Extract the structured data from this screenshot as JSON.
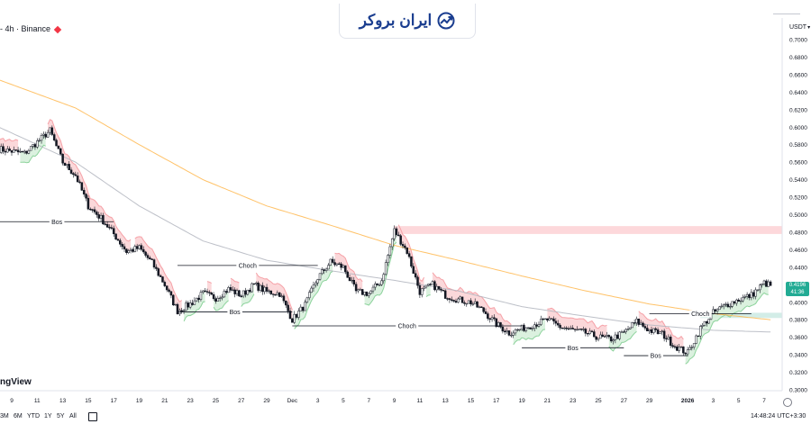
{
  "header": {
    "symbol_label": "- 4h · Binance",
    "logo_text": "ایران بروکر"
  },
  "currency": {
    "label": "USDT",
    "chevron": "▾"
  },
  "last_price": {
    "value": "0.4196",
    "countdown": "41:36"
  },
  "brand": {
    "text": "ngView"
  },
  "bottom_bar": {
    "ranges": [
      "3M",
      "6M",
      "YTD",
      "1Y",
      "5Y",
      "All"
    ],
    "clock": "14:48:24 UTC+3:30"
  },
  "colors": {
    "bull": "#089981",
    "bear": "#f23645",
    "ma_orange": "#ffb74d",
    "ma_blue": "#b2b5be",
    "red_cloud": "#fbd4d6",
    "green_cloud": "#d7efdb",
    "red_line": "#f6a1a7",
    "green_line": "#8dd39c",
    "zone_red": "#fdd8db",
    "zone_green": "#d3ede7"
  },
  "chart_data": {
    "type": "candlestick",
    "y_ticks": [
      "0.7000",
      "0.6800",
      "0.6600",
      "0.6400",
      "0.6200",
      "0.6000",
      "0.5800",
      "0.5600",
      "0.5400",
      "0.5200",
      "0.5000",
      "0.4800",
      "0.4600",
      "0.4400",
      "0.4200",
      "0.4000",
      "0.3800",
      "0.3600",
      "0.3400",
      "0.3200",
      "0.3000"
    ],
    "ylim": [
      0.3,
      0.7
    ],
    "x_ticks": [
      "9",
      "11",
      "13",
      "15",
      "17",
      "19",
      "21",
      "23",
      "25",
      "27",
      "29",
      "Dec",
      "3",
      "5",
      "7",
      "9",
      "11",
      "13",
      "15",
      "17",
      "19",
      "21",
      "23",
      "25",
      "27",
      "29",
      "2026",
      "3",
      "5",
      "7"
    ],
    "x_axis_day_index": [
      0,
      2,
      4,
      6,
      8,
      10,
      12,
      14,
      16,
      18,
      20,
      22,
      24,
      26,
      28,
      30,
      32,
      34,
      36,
      38,
      40,
      42,
      44,
      46,
      48,
      50,
      53,
      55,
      57,
      59
    ],
    "x_range_day_index": [
      -1,
      59.6
    ],
    "ohlc_anchors": [
      [
        -1,
        0.575
      ],
      [
        1,
        0.57
      ],
      [
        3,
        0.596
      ],
      [
        4,
        0.56
      ],
      [
        5,
        0.545
      ],
      [
        6,
        0.51
      ],
      [
        7,
        0.496
      ],
      [
        8,
        0.478
      ],
      [
        9,
        0.458
      ],
      [
        10,
        0.462
      ],
      [
        11,
        0.445
      ],
      [
        12,
        0.42
      ],
      [
        13,
        0.39
      ],
      [
        14,
        0.398
      ],
      [
        15,
        0.41
      ],
      [
        16,
        0.405
      ],
      [
        17,
        0.415
      ],
      [
        18,
        0.408
      ],
      [
        19,
        0.42
      ],
      [
        20,
        0.412
      ],
      [
        21,
        0.41
      ],
      [
        22,
        0.38
      ],
      [
        23,
        0.397
      ],
      [
        24,
        0.428
      ],
      [
        25,
        0.446
      ],
      [
        26,
        0.44
      ],
      [
        27,
        0.412
      ],
      [
        28,
        0.41
      ],
      [
        29,
        0.425
      ],
      [
        30,
        0.482
      ],
      [
        31,
        0.458
      ],
      [
        32,
        0.412
      ],
      [
        33,
        0.42
      ],
      [
        34,
        0.408
      ],
      [
        35,
        0.403
      ],
      [
        36,
        0.4
      ],
      [
        37,
        0.39
      ],
      [
        38,
        0.375
      ],
      [
        39,
        0.365
      ],
      [
        40,
        0.37
      ],
      [
        41,
        0.375
      ],
      [
        42,
        0.38
      ],
      [
        43,
        0.372
      ],
      [
        44,
        0.368
      ],
      [
        45,
        0.365
      ],
      [
        46,
        0.36
      ],
      [
        47,
        0.358
      ],
      [
        48,
        0.365
      ],
      [
        49,
        0.378
      ],
      [
        50,
        0.368
      ],
      [
        51,
        0.364
      ],
      [
        52,
        0.35
      ],
      [
        53,
        0.342
      ],
      [
        54,
        0.37
      ],
      [
        55,
        0.388
      ],
      [
        56,
        0.397
      ],
      [
        57,
        0.403
      ],
      [
        58,
        0.408
      ],
      [
        59,
        0.422
      ],
      [
        59.5,
        0.419
      ]
    ],
    "series": [
      {
        "name": "",
        "kind": "line",
        "style": "orange",
        "points": [
          [
            -1,
            0.654
          ],
          [
            5,
            0.622
          ],
          [
            10,
            0.58
          ],
          [
            15,
            0.54
          ],
          [
            20,
            0.51
          ],
          [
            25,
            0.488
          ],
          [
            30,
            0.465
          ],
          [
            35,
            0.448
          ],
          [
            40,
            0.43
          ],
          [
            45,
            0.413
          ],
          [
            50,
            0.398
          ],
          [
            55,
            0.387
          ],
          [
            59.5,
            0.38
          ]
        ]
      },
      {
        "name": "",
        "kind": "line",
        "style": "blue",
        "points": [
          [
            -1,
            0.6
          ],
          [
            5,
            0.56
          ],
          [
            10,
            0.51
          ],
          [
            15,
            0.47
          ],
          [
            20,
            0.448
          ],
          [
            25,
            0.436
          ],
          [
            30,
            0.425
          ],
          [
            35,
            0.413
          ],
          [
            40,
            0.395
          ],
          [
            45,
            0.384
          ],
          [
            50,
            0.374
          ],
          [
            55,
            0.368
          ],
          [
            59.5,
            0.366
          ]
        ]
      }
    ],
    "annotations": [
      {
        "label": "Bos",
        "price": 0.492,
        "x_from": -1,
        "x_to": 8
      },
      {
        "label": "Bos",
        "price": 0.389,
        "x_from": 13,
        "x_to": 22
      },
      {
        "label": "Choch",
        "price": 0.442,
        "x_from": 13,
        "x_to": 24
      },
      {
        "label": "Choch",
        "price": 0.373,
        "x_from": 22,
        "x_to": 40
      },
      {
        "label": "Bos",
        "price": 0.348,
        "x_from": 40,
        "x_to": 48
      },
      {
        "label": "Bos",
        "price": 0.339,
        "x_from": 48,
        "x_to": 53
      },
      {
        "label": "Choch",
        "price": 0.387,
        "x_from": 50,
        "x_to": 58
      }
    ],
    "zones": [
      {
        "kind": "supply",
        "y1": 0.478,
        "y2": 0.487,
        "x_from": 30,
        "x_to": 59.6
      },
      {
        "kind": "demand",
        "y1": 0.382,
        "y2": 0.388,
        "x_from": 54,
        "x_to": 59.6
      }
    ],
    "grid": false
  }
}
